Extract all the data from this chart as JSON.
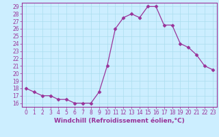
{
  "x": [
    0,
    1,
    2,
    3,
    4,
    5,
    6,
    7,
    8,
    9,
    10,
    11,
    12,
    13,
    14,
    15,
    16,
    17,
    18,
    19,
    20,
    21,
    22,
    23
  ],
  "y": [
    18,
    17.5,
    17,
    17,
    16.5,
    16.5,
    16,
    16,
    16,
    17.5,
    21,
    26,
    27.5,
    28,
    27.5,
    29,
    29,
    26.5,
    26.5,
    24,
    23.5,
    22.5,
    21,
    20.5
  ],
  "line_color": "#993399",
  "marker": "D",
  "marker_size": 2.5,
  "bg_color": "#cceeff",
  "grid_color": "#aaddee",
  "xlabel": "Windchill (Refroidissement éolien,°C)",
  "xlabel_color": "#993399",
  "tick_color": "#993399",
  "axis_color": "#993399",
  "ylim_min": 15.5,
  "ylim_max": 29.5,
  "xlim_min": -0.5,
  "xlim_max": 23.5,
  "yticks": [
    16,
    17,
    18,
    19,
    20,
    21,
    22,
    23,
    24,
    25,
    26,
    27,
    28,
    29
  ],
  "xticks": [
    0,
    1,
    2,
    3,
    4,
    5,
    6,
    7,
    8,
    9,
    10,
    11,
    12,
    13,
    14,
    15,
    16,
    17,
    18,
    19,
    20,
    21,
    22,
    23
  ],
  "xlabel_fontsize": 6.5,
  "tick_fontsize": 5.5
}
